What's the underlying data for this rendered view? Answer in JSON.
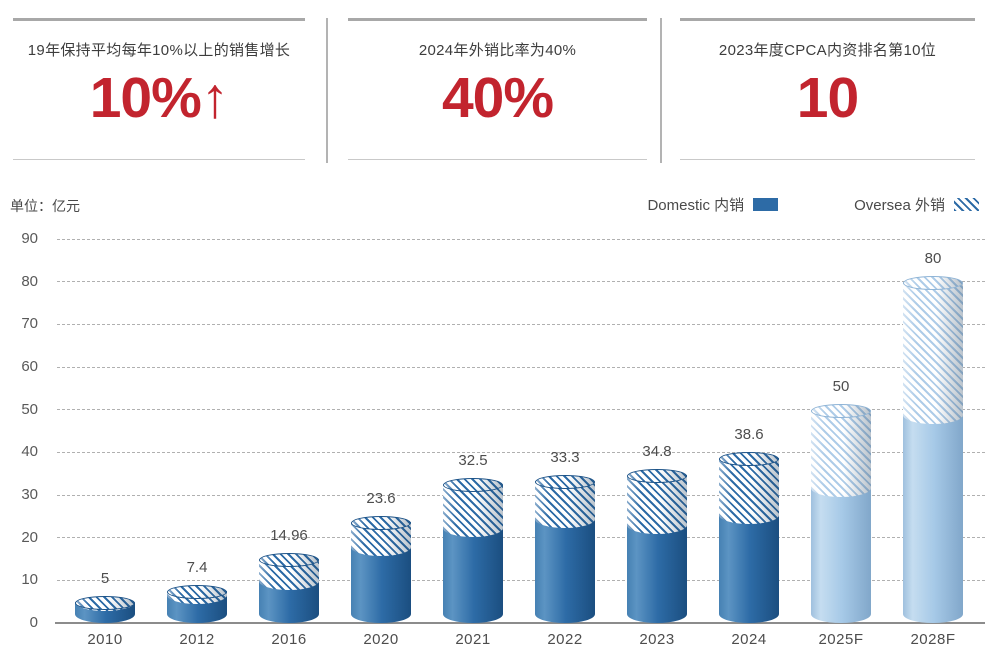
{
  "stats": [
    {
      "title": "19年保持平均每年10%以上的销售增长",
      "value": "10%↑"
    },
    {
      "title": "2024年外销比率为40%",
      "value": "40%"
    },
    {
      "title": "2023年度CPCA内资排名第10位",
      "value": "10"
    }
  ],
  "chart": {
    "unit_label": "单位：亿元",
    "legend": [
      {
        "label": "Domestic 内销",
        "style": "solid"
      },
      {
        "label": "Oversea 外销",
        "style": "hatch"
      }
    ]
  },
  "chart_data": {
    "type": "bar",
    "subtype": "stacked-cylinder",
    "title": "",
    "xlabel": "",
    "ylabel": "亿元",
    "ylim": [
      0,
      90
    ],
    "ytick_step": 10,
    "grid": "dashed-horizontal",
    "legend_position": "top-right",
    "categories": [
      "2010",
      "2012",
      "2016",
      "2020",
      "2021",
      "2022",
      "2023",
      "2024",
      "2025F",
      "2028F"
    ],
    "series": [
      {
        "name": "Domestic 内销",
        "values": [
          2.8,
          4.5,
          7.8,
          15.8,
          20.2,
          22.2,
          20.9,
          23.2,
          29.5,
          46.7
        ]
      },
      {
        "name": "Oversea 外销",
        "values": [
          2.2,
          2.9,
          7.2,
          7.8,
          12.3,
          11.1,
          13.9,
          15.4,
          20.5,
          33.3
        ]
      }
    ],
    "totals": [
      5,
      7.4,
      14.96,
      23.6,
      32.5,
      33.3,
      34.8,
      38.6,
      50,
      80
    ],
    "total_labels": [
      "5",
      "7.4",
      "14.96",
      "23.6",
      "32.5",
      "33.3",
      "34.8",
      "38.6",
      "50",
      "80"
    ],
    "forecast_categories": [
      "2025F",
      "2028F"
    ],
    "colors": {
      "accent_red": "#c2242e",
      "domestic_solid_stops": [
        "#4681b3",
        "#5c94c3",
        "#2d6ba6",
        "#1b4e80"
      ],
      "forecast_solid_stops": [
        "#9fc0de",
        "#c5ddf0",
        "#a6c9e7",
        "#81a7ca"
      ],
      "domestic_hatch_line": "#2d6ba6",
      "forecast_hatch_line": "#aecce8",
      "cap_border_domestic": "#1d5388",
      "cap_border_forecast": "#8fb4d6",
      "axis_text": "#595959",
      "grid_line": "#b0b0b0"
    }
  }
}
